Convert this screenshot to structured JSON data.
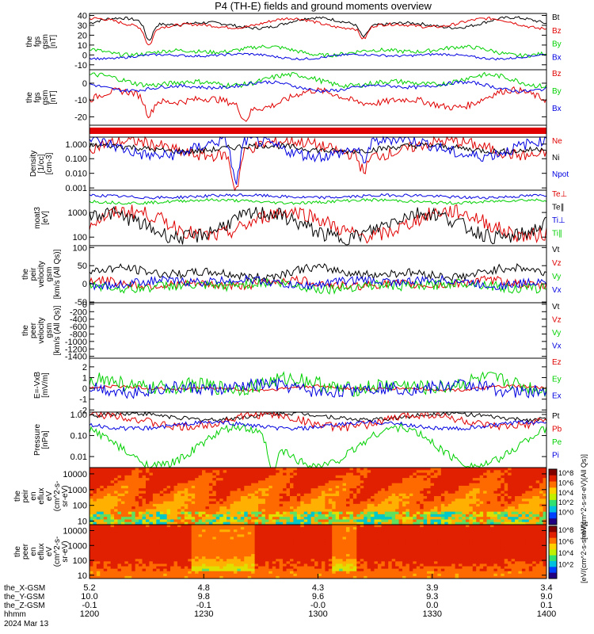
{
  "title": "P4 (TH-E) fields and ground moments overview",
  "colors": {
    "black": "#000000",
    "red": "#e00000",
    "green": "#00d000",
    "blue": "#0000e0"
  },
  "chart_data": [
    {
      "type": "line",
      "ylabel": [
        "the",
        "fgs",
        "gsm",
        "[nT]"
      ],
      "yticks": [
        -10,
        0,
        10,
        20,
        30,
        40
      ],
      "ylim": [
        -15,
        42
      ],
      "scale": "linear",
      "series": [
        {
          "name": "Bt",
          "color": "black",
          "base": 32,
          "amp": 6,
          "noise": 1.5,
          "dips": [
            [
              0.13,
              18
            ],
            [
              0.6,
              12
            ]
          ]
        },
        {
          "name": "Bz",
          "color": "red",
          "base": 31,
          "amp": 6,
          "noise": 1.5,
          "dips": [
            [
              0.13,
              18
            ],
            [
              0.6,
              12
            ]
          ]
        },
        {
          "name": "By",
          "color": "green",
          "base": 4,
          "amp": 5,
          "noise": 2
        },
        {
          "name": "Bx",
          "color": "blue",
          "base": -1,
          "amp": 3,
          "noise": 1.2
        }
      ]
    },
    {
      "type": "line",
      "ylabel": [
        "the",
        "fgs",
        "gsm",
        "[nT]"
      ],
      "yticks": [
        -20,
        -10,
        0
      ],
      "ylim": [
        -25,
        8
      ],
      "scale": "linear",
      "series": [
        {
          "name": "Bz",
          "color": "red",
          "base": -10,
          "amp": 6,
          "noise": 2,
          "dips": [
            [
              0.13,
              10
            ],
            [
              0.34,
              8
            ]
          ]
        },
        {
          "name": "By",
          "color": "green",
          "base": 1,
          "amp": 4,
          "noise": 1.5
        },
        {
          "name": "Bx",
          "color": "blue",
          "base": -2,
          "amp": 3,
          "noise": 1
        }
      ]
    },
    {
      "type": "line",
      "ylabel": [
        "Density",
        "[1/cc]",
        "[cm-3]"
      ],
      "yticks": [
        0.001,
        0.01,
        0.1,
        1
      ],
      "ytick_labels": [
        "0.001",
        "0.010",
        "0.100",
        "1.000"
      ],
      "ylim": [
        0.0007,
        3
      ],
      "scale": "log",
      "series": [
        {
          "name": "Ne",
          "color": "red",
          "base": 0.5,
          "amp": 0.5,
          "noise": 0.2,
          "dips": [
            [
              0.32,
              2.5
            ],
            [
              0.6,
              1
            ]
          ]
        },
        {
          "name": "Ni",
          "color": "black",
          "base": 0.5,
          "amp": 0.2,
          "noise": 0.1
        },
        {
          "name": "Npot",
          "color": "blue",
          "base": 0.6,
          "amp": 0.6,
          "noise": 0.2,
          "dips": [
            [
              0.32,
              3
            ],
            [
              0.6,
              1
            ]
          ]
        }
      ]
    },
    {
      "type": "line",
      "ylabel": [
        "moat3",
        "[eV]"
      ],
      "yticks": [
        100,
        1000
      ],
      "ytick_labels": [
        "100",
        "1000"
      ],
      "ylim": [
        45,
        8000
      ],
      "scale": "log",
      "series": [
        {
          "name": "Te⊥",
          "color": "red",
          "base": 350,
          "amp": 0.5,
          "noise": 0.15
        },
        {
          "name": "Te∥",
          "color": "black",
          "base": 300,
          "amp": 0.5,
          "noise": 0.15
        },
        {
          "name": "Ti⊥",
          "color": "blue",
          "base": 4500,
          "amp": 0.05,
          "noise": 0.03
        },
        {
          "name": "Ti∥",
          "color": "green",
          "base": 2800,
          "amp": 0.06,
          "noise": 0.03
        }
      ]
    },
    {
      "type": "line",
      "ylabel": [
        "the",
        "peir",
        "velocity",
        "gsm",
        "[km/s (All Qs)]"
      ],
      "yticks": [
        -50,
        0,
        50,
        100
      ],
      "ylim": [
        -52,
        105
      ],
      "scale": "linear",
      "series": [
        {
          "name": "Vt",
          "color": "black",
          "base": 30,
          "amp": 15,
          "noise": 12
        },
        {
          "name": "Vz",
          "color": "red",
          "base": 0,
          "amp": 10,
          "noise": 12
        },
        {
          "name": "Vy",
          "color": "green",
          "base": -5,
          "amp": 10,
          "noise": 14
        },
        {
          "name": "Vx",
          "color": "blue",
          "base": 5,
          "amp": 10,
          "noise": 12
        }
      ]
    },
    {
      "type": "line",
      "ylabel": [
        "the",
        "peer",
        "velocity",
        "gsm",
        "[km/s (All Qs)]"
      ],
      "yticks": [
        -1400,
        -1200,
        -1000,
        -800,
        -600,
        -400,
        -200,
        0
      ],
      "ylim": [
        -1450,
        40
      ],
      "scale": "linear",
      "series": [
        {
          "name": "Vt",
          "color": "black"
        },
        {
          "name": "Vz",
          "color": "red"
        },
        {
          "name": "Vy",
          "color": "green"
        },
        {
          "name": "Vx",
          "color": "blue"
        }
      ]
    },
    {
      "type": "line",
      "ylabel": [
        "E=-VxB",
        "[mV/m]"
      ],
      "yticks": [
        -2,
        -1,
        0,
        1,
        2
      ],
      "ylim": [
        -2.2,
        2.8
      ],
      "scale": "linear",
      "series": [
        {
          "name": "Ez",
          "color": "red",
          "base": 0,
          "amp": 0.2,
          "noise": 0.15
        },
        {
          "name": "Ey",
          "color": "green",
          "base": 0.3,
          "amp": 0.6,
          "noise": 0.7
        },
        {
          "name": "Ex",
          "color": "blue",
          "base": 0,
          "amp": 0.4,
          "noise": 0.6
        }
      ]
    },
    {
      "type": "line",
      "ylabel": [
        "Pressure",
        "[nPa]"
      ],
      "yticks": [
        0.01,
        0.1,
        1
      ],
      "ytick_labels": [
        "0.01",
        "0.10",
        "1.00"
      ],
      "ylim": [
        0.003,
        1.3
      ],
      "scale": "log",
      "series": [
        {
          "name": "Pt",
          "color": "black",
          "base": 0.8,
          "amp": 0.15,
          "noise": 0.05
        },
        {
          "name": "Pb",
          "color": "red",
          "base": 0.5,
          "amp": 0.3,
          "noise": 0.1
        },
        {
          "name": "Pe",
          "color": "green",
          "base": 0.03,
          "amp": 0.9,
          "noise": 0.1,
          "dips": [
            [
              0.4,
              1.5
            ]
          ]
        },
        {
          "name": "Pi",
          "color": "blue",
          "base": 0.3,
          "amp": 0.15,
          "noise": 0.05
        }
      ]
    },
    {
      "type": "heatmap",
      "ylabel": [
        "the",
        "peir",
        "en",
        "eflux",
        "eV",
        "(cm^2-s-",
        "sr-eV)"
      ],
      "yticks": [
        10,
        100,
        1000,
        10000
      ],
      "ytick_labels": [
        "10",
        "100",
        "1000",
        "10000"
      ],
      "ylim": [
        6,
        25000
      ],
      "scale": "log",
      "pattern": "ion"
    },
    {
      "type": "heatmap",
      "ylabel": [
        "the",
        "peer",
        "en",
        "eflux",
        "eV",
        "(cm^2-s-",
        "sr-eV)"
      ],
      "yticks": [
        10,
        100,
        1000,
        10000
      ],
      "ytick_labels": [
        "10",
        "100",
        "1000",
        "10000"
      ],
      "ylim": [
        6,
        25000
      ],
      "scale": "log",
      "pattern": "electron"
    }
  ],
  "colorbar": {
    "ticks_top": [
      "10^8",
      "10^6",
      "10^4",
      "10^2",
      "10^0"
    ],
    "ticks_bottom": [
      "10^8",
      "10^6",
      "10^4",
      "10^2"
    ],
    "label_top": "[eV/(cm^2-s-sr-eV)(All Qs)]",
    "label_bottom": "[eV/(cm^2-s-sr-eV)]"
  },
  "x_axis": {
    "ticks": [
      {
        "time": "1200",
        "x": "5.2",
        "y": "10.0",
        "z": "-0.1"
      },
      {
        "time": "1230",
        "x": "4.8",
        "y": "9.8",
        "z": "-0.1"
      },
      {
        "time": "1300",
        "x": "4.3",
        "y": "9.6",
        "z": "-0.0"
      },
      {
        "time": "1330",
        "x": "3.9",
        "y": "9.3",
        "z": "0.0"
      },
      {
        "time": "1400",
        "x": "3.4",
        "y": "9.0",
        "z": "0.1"
      }
    ],
    "row_labels": [
      "the_X-GSM",
      "the_Y-GSM",
      "the_Z-GSM",
      "hhmm"
    ],
    "date": "2024 Mar 13"
  }
}
